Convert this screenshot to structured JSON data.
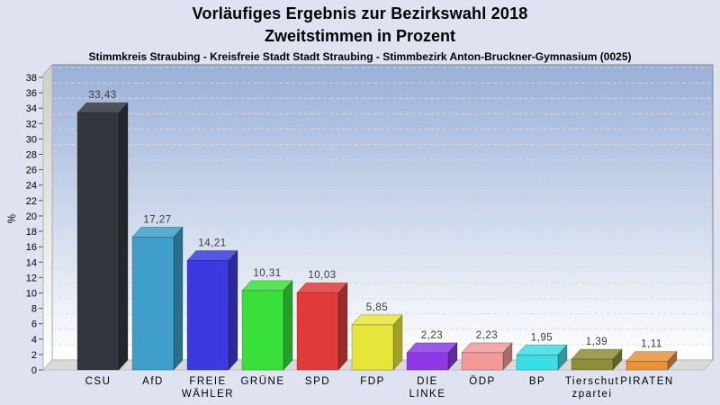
{
  "page": {
    "background_color": "#dfe3f1"
  },
  "chart_data": {
    "type": "bar",
    "style": "3d-bars",
    "title": "Vorläufiges Ergebnis zur Bezirkswahl 2018",
    "subtitle": "Zweitstimmen in Prozent",
    "caption": "Stimmkreis Straubing - Kreisfreie Stadt Stadt Straubing - Stimmbezirk Anton-Bruckner-Gymnasium (0025)",
    "ylabel": "%",
    "ylim": [
      0,
      38
    ],
    "ytick_step": 2,
    "grid": "horizontal-dashed",
    "legend": "none",
    "categories": [
      "CSU",
      "AfD",
      "FREIE WÄHLER",
      "GRÜNE",
      "SPD",
      "FDP",
      "DIE LINKE",
      "ÖDP",
      "BP",
      "Tierschutzpartei",
      "PIRATEN"
    ],
    "category_label_lines": [
      [
        "CSU"
      ],
      [
        "AfD"
      ],
      [
        "FREIE",
        "WÄHLER"
      ],
      [
        "GRÜNE"
      ],
      [
        "SPD"
      ],
      [
        "FDP"
      ],
      [
        "DIE",
        "LINKE"
      ],
      [
        "ÖDP"
      ],
      [
        "BP"
      ],
      [
        "Tierschut",
        "zpartei"
      ],
      [
        "PIRATEN"
      ]
    ],
    "values": [
      33.43,
      17.27,
      14.21,
      10.31,
      10.03,
      5.85,
      2.23,
      2.23,
      1.95,
      1.39,
      1.11
    ],
    "value_labels": [
      "33,43",
      "17,27",
      "14,21",
      "10,31",
      "10,03",
      "5,85",
      "2,23",
      "2,23",
      "1,95",
      "1,39",
      "1,11"
    ],
    "bar_colors": [
      "#32373e",
      "#3f9fca",
      "#3a3ae0",
      "#3ae03a",
      "#e03a3a",
      "#e6e63a",
      "#8d3ae6",
      "#f09a9a",
      "#3adee6",
      "#8d8d3a",
      "#e6933a"
    ],
    "colors": {
      "plot_gradient_top": "#9ab0d8",
      "plot_gradient_bottom": "#ffffff",
      "grid_line": "#dcdcd2",
      "wall_side_top": "#cfcfc9",
      "wall_side_bottom": "#ffffff",
      "floor": "#dadad8",
      "axis_text": "#000000",
      "value_label_text": "#3a3a3a",
      "plot_border": "#91919b"
    }
  }
}
